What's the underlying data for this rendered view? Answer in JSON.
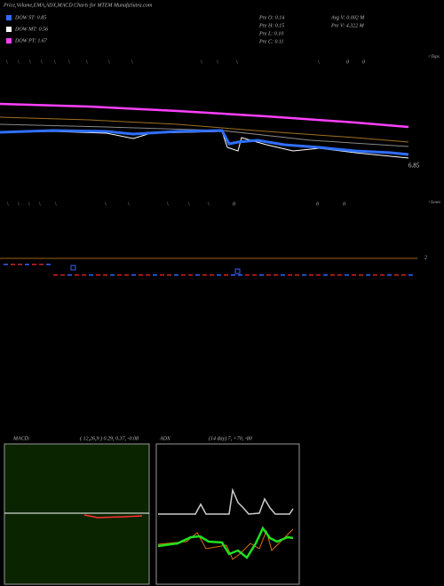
{
  "header": {
    "title": "Price,Volume,EMA,ADX,MACD Charts for MTEM MunafaSutra.com"
  },
  "legend": [
    {
      "label": "DOW ST: 0.85",
      "color": "#2f6fff"
    },
    {
      "label": "DOW MT: 0.56",
      "color": "#ffffff"
    },
    {
      "label": "DOW PT: 1.67",
      "color": "#ff40ff"
    }
  ],
  "stats": {
    "pre_open": "Pre  O: 0.14",
    "pre_high": "Pre  H: 0.15",
    "pre_low": "Pre  L: 0.10",
    "pre_close": "Pre  C: 0.11",
    "avg_volume": "Avg V: 0.002  M",
    "pre_volume": "Pre  V: 4.322  M"
  },
  "price_label": "6.85",
  "tops": {
    "label": "<Tops",
    "marks": [
      "\\",
      "\\",
      "\\",
      "\\",
      "\\",
      "\\",
      "\\",
      "\\",
      "\\",
      "\\",
      "\\",
      "\\",
      "\\",
      "0",
      "0"
    ]
  },
  "lows": {
    "label": "<Lows",
    "marks": [
      "\\",
      "\\",
      "\\",
      "\\",
      "\\",
      "\\",
      "\\",
      "\\",
      "\\",
      "\\",
      "0",
      "0",
      "0"
    ]
  },
  "volume_label": "2",
  "macd": {
    "label": "MACD:",
    "params": "( 12,26,9 ) 0.29, 0.37, -0.08"
  },
  "adx": {
    "label": "ADX",
    "params": "(14  day) 7, +70, -80"
  }
}
